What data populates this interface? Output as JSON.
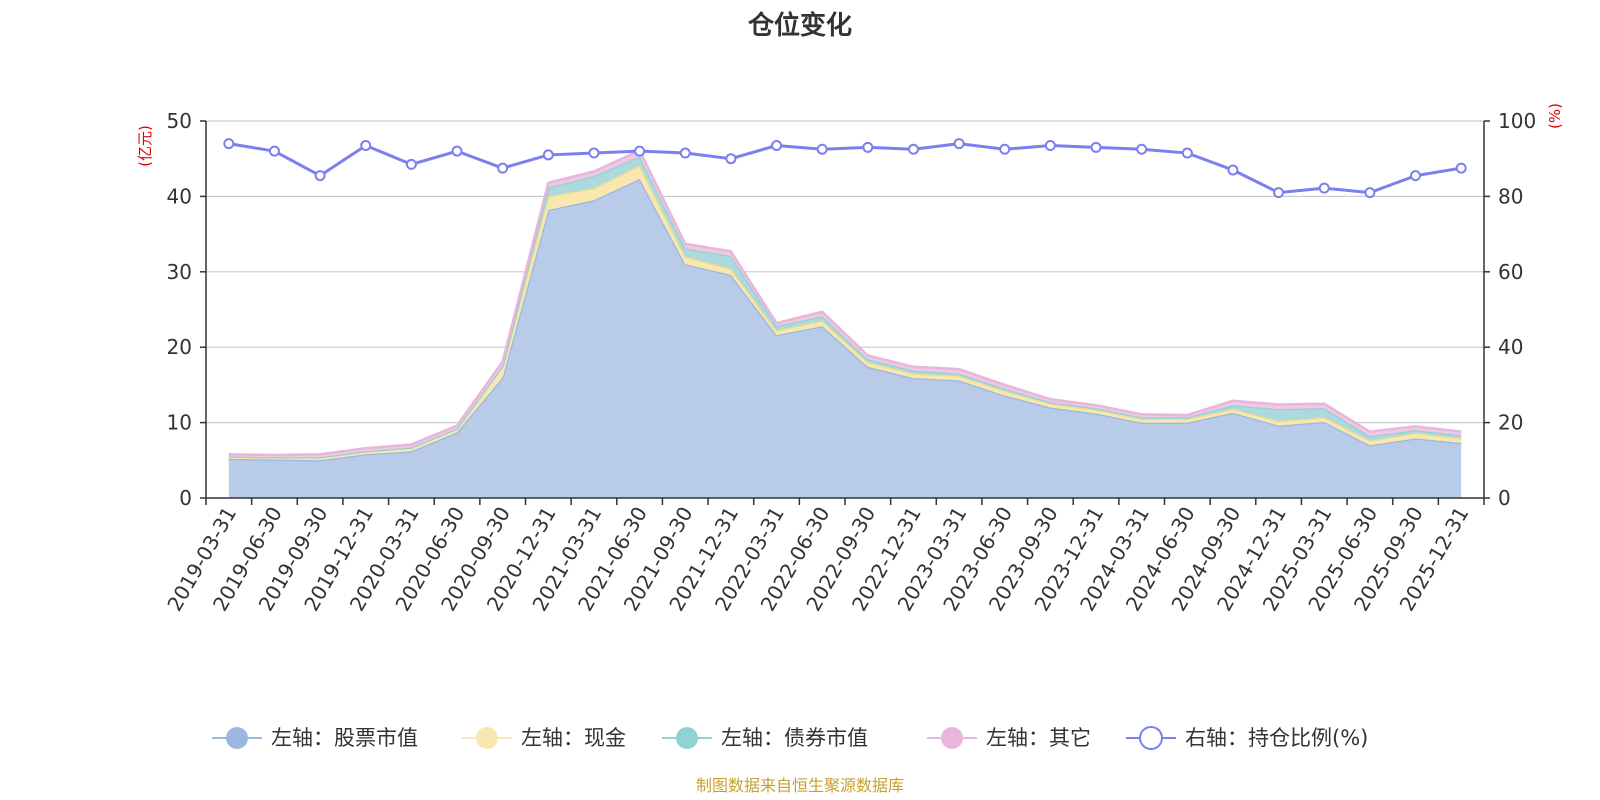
{
  "chart_data": {
    "type": "area",
    "title": "仓位变化",
    "source_note": "制图数据来自恒生聚源数据库",
    "left_axis": {
      "unit_label": "(亿元)",
      "ylim": [
        0,
        50
      ],
      "ticks": [
        "0",
        "10",
        "20",
        "30",
        "40",
        "50"
      ]
    },
    "right_axis": {
      "unit_label": "(%)",
      "ylim": [
        0,
        100
      ],
      "ticks": [
        "0",
        "20",
        "40",
        "60",
        "80",
        "100"
      ]
    },
    "x_tick_labels": [
      "2019-03-31",
      "2019-06-30",
      "2019-09-30",
      "2019-12-31",
      "2020-03-31",
      "2020-06-30",
      "2020-09-30",
      "2020-12-31",
      "2021-03-31",
      "2021-06-30",
      "2021-09-30",
      "2021-12-31",
      "2022-03-31",
      "2022-06-30",
      "2022-09-30",
      "2022-12-31",
      "2023-03-31",
      "2023-06-30",
      "2023-09-30",
      "2023-12-31",
      "2024-03-31",
      "2024-06-30",
      "2024-09-30",
      "2024-12-31",
      "2025-03-31",
      "2025-06-30",
      "2025-09-30",
      "2025-12-31"
    ],
    "categories": [
      "2019-03-31",
      "2019-06-30",
      "2019-09-30",
      "2019-12-31",
      "2020-03-31",
      "2020-06-30",
      "2020-09-30",
      "2020-12-31",
      "2021-03-31",
      "2021-06-30",
      "2021-09-30",
      "2021-12-31",
      "2022-03-31",
      "2022-06-30",
      "2022-09-30",
      "2022-12-31",
      "2023-03-31",
      "2023-06-30",
      "2023-09-30",
      "2023-12-31",
      "2024-03-31",
      "2024-06-30",
      "2024-09-30",
      "2024-12-31",
      "2025-03-31",
      "2025-06-30",
      "2025-09-30",
      "2025-12-31"
    ],
    "stacked_series": [
      {
        "name": "左轴：股票市值",
        "axis": "left",
        "color": "#9bb7e0",
        "fill": "#b8cbe8",
        "values": [
          5.2,
          5.1,
          5.0,
          5.8,
          6.2,
          8.7,
          16.0,
          38.2,
          39.5,
          42.3,
          31.0,
          29.6,
          21.6,
          22.8,
          17.4,
          15.9,
          15.6,
          13.6,
          12.0,
          11.2,
          10.0,
          10.0,
          11.3,
          9.6,
          10.1,
          7.0,
          7.9,
          7.3
        ]
      },
      {
        "name": "左轴：现金",
        "axis": "left",
        "color": "#f5dc8c",
        "fill": "#f8e8b0",
        "values": [
          0.3,
          0.3,
          0.4,
          0.4,
          0.5,
          0.5,
          1.5,
          1.8,
          1.6,
          1.8,
          1.0,
          0.8,
          0.6,
          0.7,
          0.6,
          0.6,
          0.6,
          0.6,
          0.5,
          0.5,
          0.5,
          0.5,
          0.5,
          0.6,
          0.6,
          0.6,
          0.7,
          0.6
        ]
      },
      {
        "name": "左轴：债券市值",
        "axis": "left",
        "color": "#8fd3d6",
        "fill": "#add9dc",
        "values": [
          0.0,
          0.0,
          0.0,
          0.0,
          0.0,
          0.0,
          0.0,
          1.2,
          1.6,
          1.2,
          1.1,
          1.7,
          0.6,
          0.6,
          0.4,
          0.4,
          0.3,
          0.3,
          0.2,
          0.2,
          0.2,
          0.2,
          0.5,
          1.6,
          1.2,
          0.6,
          0.4,
          0.4
        ]
      },
      {
        "name": "左轴：其它",
        "axis": "left",
        "color": "#e8b6da",
        "fill": "#efc8e4",
        "values": [
          0.3,
          0.3,
          0.4,
          0.4,
          0.4,
          0.4,
          0.6,
          0.6,
          0.6,
          0.8,
          0.6,
          0.6,
          0.4,
          0.6,
          0.5,
          0.5,
          0.6,
          0.5,
          0.4,
          0.4,
          0.4,
          0.3,
          0.6,
          0.6,
          0.6,
          0.6,
          0.5,
          0.5
        ]
      }
    ],
    "line_series": [
      {
        "name": "右轴：持仓比例(%)",
        "axis": "right",
        "color": "#7b7ff0",
        "values": [
          94,
          92,
          85.5,
          93.5,
          88.5,
          92,
          87.5,
          91,
          91.5,
          92,
          91.5,
          90,
          93.5,
          92.5,
          93,
          92.5,
          94,
          92.5,
          93.5,
          93,
          92.5,
          91.5,
          87,
          81,
          82.2,
          81,
          85.5,
          87.5
        ]
      }
    ],
    "legend": [
      {
        "label": "左轴：股票市值",
        "marker": "filled-circle",
        "color": "#9bb7e0"
      },
      {
        "label": "左轴：现金",
        "marker": "filled-circle",
        "color": "#f8e8b0"
      },
      {
        "label": "左轴：债券市值",
        "marker": "filled-circle",
        "color": "#8fd3d6"
      },
      {
        "label": "左轴：其它",
        "marker": "filled-circle",
        "color": "#e8b6da"
      },
      {
        "label": "右轴：持仓比例(%)",
        "marker": "hollow-circle",
        "color": "#7b7ff0"
      }
    ],
    "grid": true
  }
}
